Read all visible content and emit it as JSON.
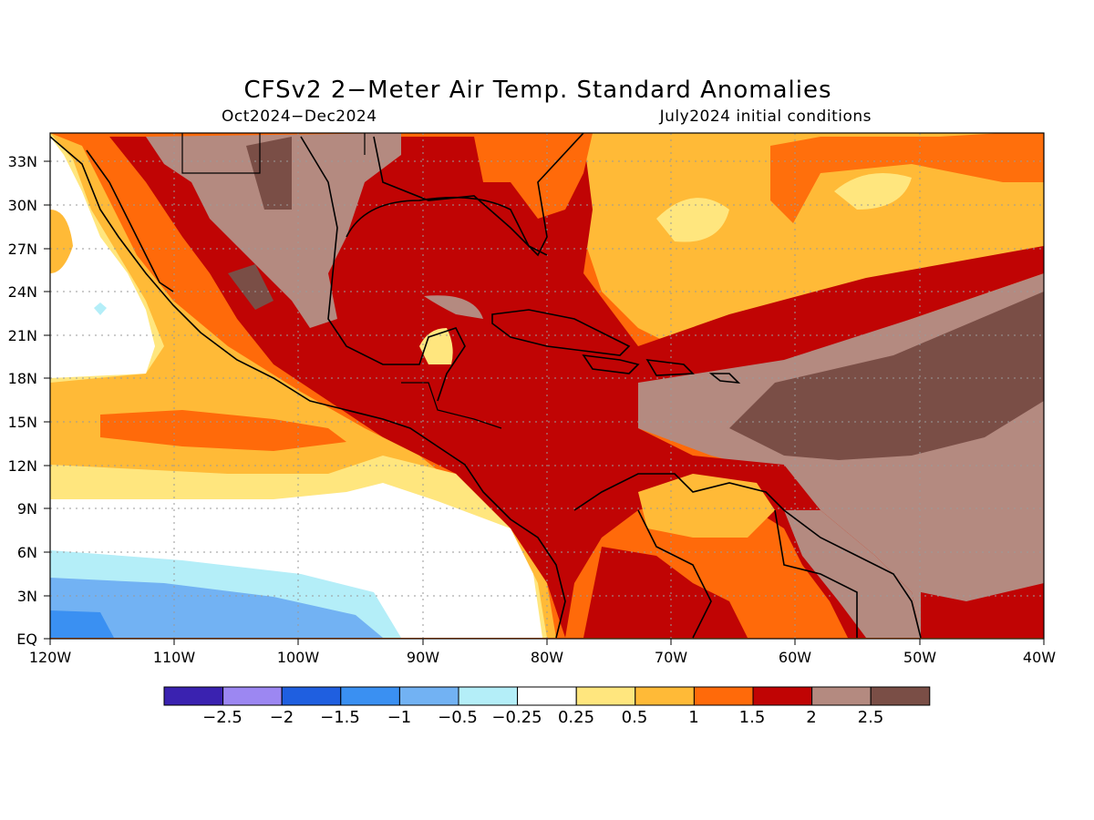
{
  "map": {
    "title": "CFSv2 2−Meter Air Temp. Standard Anomalies",
    "period": "Oct2024−Dec2024",
    "init": "July2024 initial conditions",
    "lat_labels": [
      "33N",
      "30N",
      "27N",
      "24N",
      "21N",
      "18N",
      "15N",
      "12N",
      "9N",
      "6N",
      "3N",
      "EQ"
    ],
    "lon_labels": [
      "120W",
      "110W",
      "100W",
      "90W",
      "80W",
      "70W",
      "60W",
      "50W",
      "40W"
    ],
    "extent": {
      "lon": [
        -120,
        -40
      ],
      "lat": [
        0,
        35
      ]
    }
  },
  "colorbar": {
    "colors": [
      "#3a22b0",
      "#9c87f2",
      "#1f5fe0",
      "#3a90f2",
      "#72b2f3",
      "#b4eef8",
      "#ffffff",
      "#ffe67e",
      "#ffba37",
      "#ff6a0a",
      "#c00404",
      "#b48a80",
      "#7a4e46"
    ],
    "labels": [
      "−2.5",
      "−2",
      "−1.5",
      "−1",
      "−0.5",
      "−0.25",
      "0.25",
      "0.5",
      "1",
      "1.5",
      "2",
      "2.5"
    ]
  }
}
